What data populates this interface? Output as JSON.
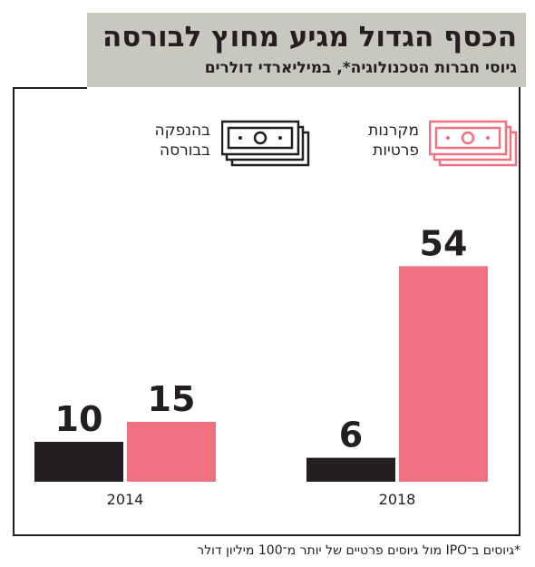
{
  "header": {
    "title": "הכסף הגדול מגיע מחוץ לבורסה",
    "subtitle": "גיוסי חברות הטכנולוגיה*, במיליארדי דולרים"
  },
  "legend": [
    {
      "label": "מקרנות\nפרטיות",
      "icon": "banknote-stack-icon",
      "color": "#f07282"
    },
    {
      "label": "בהנפקה\nבבורסה",
      "icon": "banknote-stack-icon",
      "color": "#231f20"
    }
  ],
  "chart_data": {
    "type": "bar",
    "categories": [
      "2014",
      "2018"
    ],
    "series": [
      {
        "name": "בהנפקה בבורסה",
        "values": [
          10,
          6
        ],
        "color": "#231f20"
      },
      {
        "name": "מקרנות פרטיות",
        "values": [
          15,
          54
        ],
        "color": "#f07282"
      }
    ],
    "data_labels": true,
    "ylim": [
      0,
      60
    ],
    "grid": false,
    "legend_position": "top"
  },
  "footnote": "*גיוסים ב־IPO מול גיוסים פרטיים של יותר מ־100 מיליון דולר"
}
